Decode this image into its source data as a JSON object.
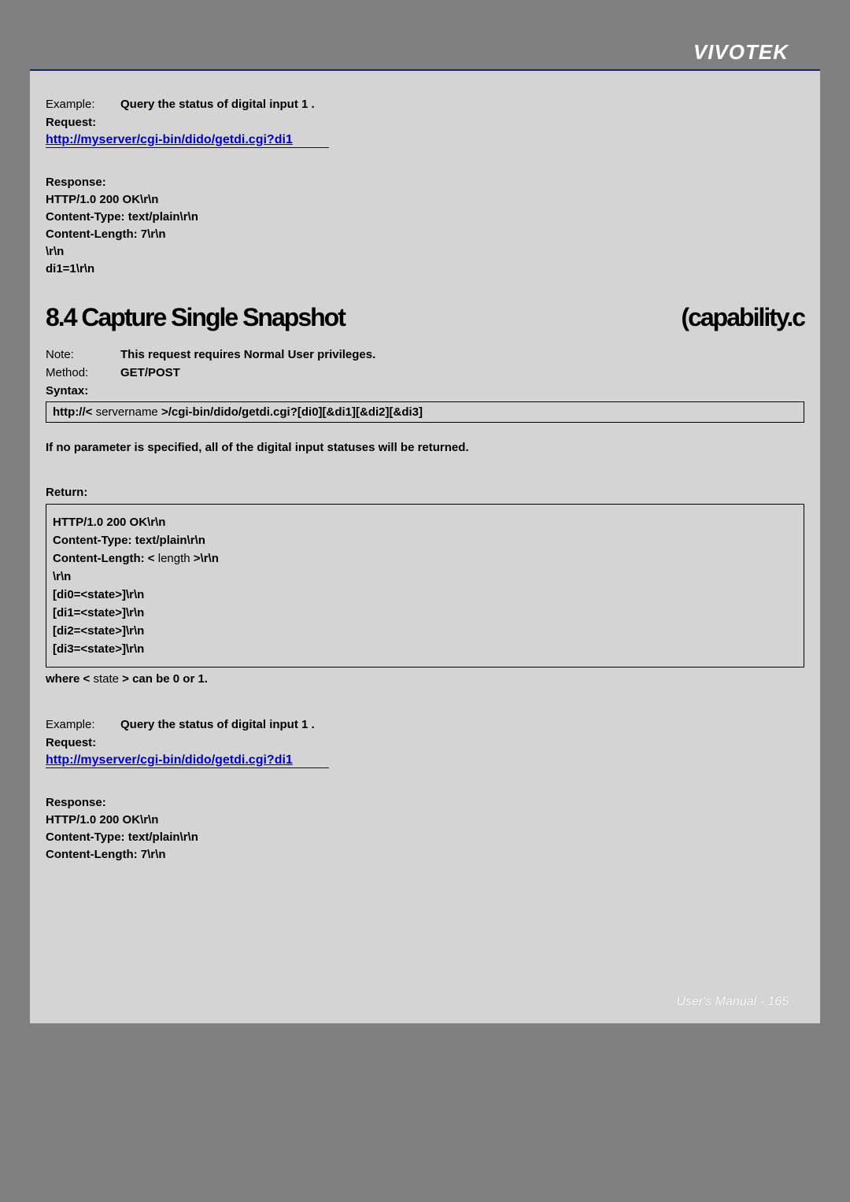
{
  "brand": "VIVOTEK",
  "footer_label": "User's Manual - ",
  "footer_page": "165",
  "sec1": {
    "example_lbl": "Example:",
    "example_txt": "Query the status of digital input 1 .",
    "request_lbl": "Request:",
    "link": "http://myserver/cgi-bin/dido/getdi.cgi?di1",
    "response_lbl": "Response:",
    "l1": "HTTP/1.0 200 OK\\r\\n",
    "l2": "Content-Type: text/plain\\r\\n",
    "l3": "Content-Length: 7\\r\\n",
    "l4": "\\r\\n",
    "l5": "di1=1\\r\\n"
  },
  "heading_left": "8.4 Capture Single Snapshot",
  "heading_right": "(capability.c",
  "sec2": {
    "note_lbl": "Note:",
    "note_txt": "This request requires Normal User privileges.",
    "method_lbl": "Method:",
    "method_txt": "GET/POST",
    "syntax_lbl": "Syntax:",
    "syntax_line_prefix": "http://<",
    "syntax_servername": "servername",
    "syntax_line_suffix": ">/cgi-bin/dido/getdi.cgi?[di0][&di1][&di2][&di3]",
    "para": "If no parameter is specified, all of the digital input statuses will be returned.",
    "return_lbl": "Return:",
    "r1": "HTTP/1.0 200 OK\\r\\n",
    "r2": "Content-Type: text/plain\\r\\n",
    "r3_a": "Content-Length: <",
    "r3_b": "length",
    "r3_c": ">\\r\\n",
    "r4": "\\r\\n",
    "r5": "[di0=<state>]\\r\\n",
    "r6": "[di1=<state>]\\r\\n",
    "r7": "[di2=<state>]\\r\\n",
    "r8": "[di3=<state>]\\r\\n",
    "where_a": "where <",
    "where_b": "state",
    "where_c": "> can be 0 or 1."
  },
  "sec3": {
    "example_lbl": "Example:",
    "example_txt": "Query the status of digital input 1 .",
    "request_lbl": "Request:",
    "link": "http://myserver/cgi-bin/dido/getdi.cgi?di1",
    "response_lbl": "Response:",
    "l1": "HTTP/1.0 200 OK\\r\\n",
    "l2": "Content-Type: text/plain\\r\\n",
    "l3": "Content-Length: 7\\r\\n"
  }
}
